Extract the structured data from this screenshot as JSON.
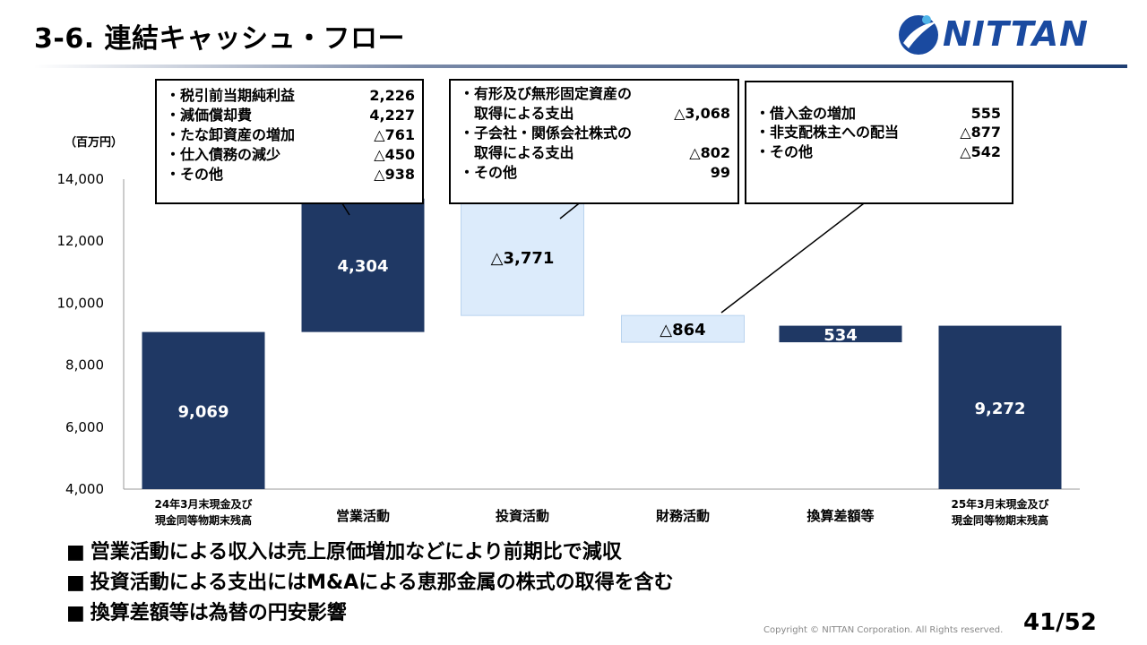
{
  "title": "3-6. 連結キャッシュ・フロー",
  "logo": {
    "text": "NITTAN"
  },
  "unit": "（百万円）",
  "chart_data": {
    "type": "bar",
    "subtype": "waterfall",
    "categories": [
      "24年3月末現金及び\n現金同等物期末残高",
      "営業活動",
      "投資活動",
      "財務活動",
      "換算差額等",
      "25年3月末現金及び\n現金同等物期末残高"
    ],
    "values": [
      9069,
      4304,
      -3771,
      -864,
      534,
      9272
    ],
    "data_labels": [
      "9,069",
      "4,304",
      "△3,771",
      "△864",
      "534",
      "9,272"
    ],
    "ylim": [
      4000,
      14000
    ],
    "yticks": [
      "4,000",
      "6,000",
      "8,000",
      "10,000",
      "12,000",
      "14,000"
    ],
    "colors": {
      "positive": "#1f3864",
      "negative": "#dcebfb",
      "negative_border": "#b9d3ee"
    }
  },
  "callouts": [
    {
      "lines": [
        {
          "label": "・税引前当期純利益",
          "value": "2,226"
        },
        {
          "label": "・減価償却費",
          "value": "4,227"
        },
        {
          "label": "・たな卸資産の増加",
          "value": "△761"
        },
        {
          "label": "・仕入債務の減少",
          "value": "△450"
        },
        {
          "label": "・その他",
          "value": "△938"
        }
      ]
    },
    {
      "lines": [
        {
          "label": "・有形及び無形固定資産の",
          "value": ""
        },
        {
          "label": "　取得による支出",
          "value": "△3,068"
        },
        {
          "label": "・子会社・関係会社株式の",
          "value": ""
        },
        {
          "label": "　取得による支出",
          "value": "△802"
        },
        {
          "label": "・その他",
          "value": "99"
        }
      ]
    },
    {
      "lines": [
        {
          "label": "・借入金の増加",
          "value": "555"
        },
        {
          "label": "・非支配株主への配当",
          "value": "△877"
        },
        {
          "label": "・その他",
          "value": "△542"
        }
      ]
    }
  ],
  "bullets": [
    {
      "marker": "■",
      "text": "営業活動による収入は売上原価増加などにより前期比で減収"
    },
    {
      "marker": "■",
      "text": "投資活動による支出にはM&Aによる恵那金属の株式の取得を含む"
    },
    {
      "marker": "■",
      "text": "換算差額等は為替の円安影響"
    }
  ],
  "copyright": "Copyright © NITTAN Corporation. All Rights reserved.",
  "page_number": "41/52"
}
